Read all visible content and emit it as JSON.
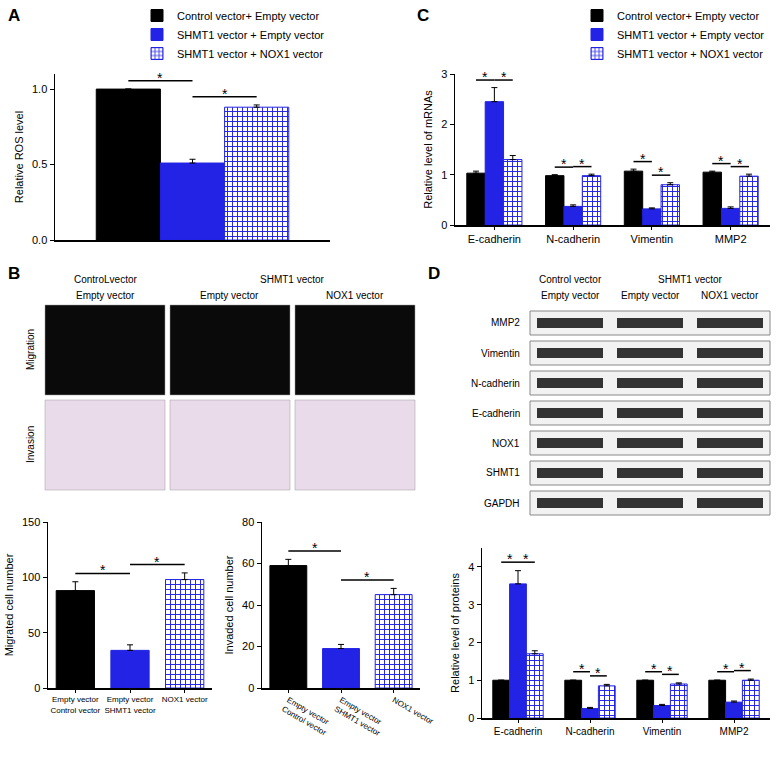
{
  "chart_data": [
    {
      "panel": "A",
      "type": "bar",
      "y_label": "Relative ROS level",
      "ylim": [
        0,
        1.1
      ],
      "yticks": [
        {
          "value": 0,
          "label": "0.0"
        },
        0.5,
        {
          "value": 1,
          "label": "1.0"
        }
      ],
      "grid": false,
      "legend": "top right",
      "tick_labels": "y",
      "series": [
        {
          "name": "Control vector+ Empty vector",
          "color": "#000000",
          "values": [
            1.0
          ],
          "errors": [
            0
          ]
        },
        {
          "name": "SHMT1 vector + Empty vector",
          "color": "#2323e6",
          "values": [
            0.51
          ],
          "errors": [
            0.025
          ]
        },
        {
          "name": "SHMT1 vector + NOX1 vector",
          "color": "#2323e6",
          "marker": "checkered",
          "values": [
            0.88
          ],
          "errors": [
            0.015
          ]
        }
      ],
      "annotations": [
        {
          "text": "*",
          "category": 0,
          "between": [
            0,
            1
          ]
        },
        {
          "text": "*",
          "category": 0,
          "between": [
            1,
            2
          ]
        }
      ]
    },
    {
      "panel": "C",
      "type": "bar",
      "y_label": "Relative level of mRNAs",
      "categories": [
        "E-cadherin",
        "N-cadherin",
        "Vimentin",
        "MMP2"
      ],
      "ylim": [
        0,
        3
      ],
      "yticks": [
        0,
        1,
        2,
        3
      ],
      "grid": false,
      "legend": "top right",
      "series": [
        {
          "name": "Control vector+ Empty vector",
          "color": "#000000",
          "values": [
            1.03,
            0.98,
            1.07,
            1.05
          ],
          "errors": [
            0.04,
            0.02,
            0.04,
            0.02
          ]
        },
        {
          "name": "SHMT1 vector + Empty vector",
          "color": "#2323e6",
          "values": [
            2.45,
            0.37,
            0.32,
            0.33
          ],
          "errors": [
            0.28,
            0.03,
            0.02,
            0.03
          ]
        },
        {
          "name": "SHMT1 vector + NOX1 vector",
          "color": "#2323e6",
          "marker": "checkered",
          "values": [
            1.3,
            0.98,
            0.8,
            0.97
          ],
          "errors": [
            0.08,
            0.03,
            0.04,
            0.04
          ]
        }
      ],
      "annotations": [
        {
          "text": "*",
          "category": 0,
          "between": [
            0,
            1
          ]
        },
        {
          "text": "*",
          "category": 0,
          "between": [
            1,
            2
          ]
        },
        {
          "text": "*",
          "category": 1,
          "between": [
            0,
            1
          ]
        },
        {
          "text": "*",
          "category": 1,
          "between": [
            1,
            2
          ]
        },
        {
          "text": "*",
          "category": 2,
          "between": [
            0,
            1
          ]
        },
        {
          "text": "*",
          "category": 2,
          "between": [
            1,
            2
          ]
        },
        {
          "text": "*",
          "category": 3,
          "between": [
            0,
            1
          ]
        },
        {
          "text": "*",
          "category": 3,
          "between": [
            1,
            2
          ]
        }
      ]
    },
    {
      "type": "bar",
      "y_label": "Migrated cell number",
      "categories": [
        "Empty vector\nControl vector",
        "Empty vector\nSHMT1 vector",
        "NOX1 vector"
      ],
      "ylim": [
        0,
        150
      ],
      "yticks": [
        0,
        50,
        100,
        150
      ],
      "grid": false,
      "series": [
        {
          "color": "#000000",
          "values": [
            88,
            null,
            null
          ],
          "errors": [
            8,
            null,
            null
          ]
        },
        {
          "color": "#2323e6",
          "values": [
            null,
            34,
            null
          ],
          "errors": [
            null,
            5,
            null
          ]
        },
        {
          "color": "#2323e6",
          "marker": "checkered",
          "values": [
            null,
            null,
            98
          ],
          "errors": [
            null,
            null,
            6
          ]
        }
      ],
      "annotations": [
        {
          "text": "*",
          "between": [
            0,
            1
          ]
        },
        {
          "text": "*",
          "between": [
            1,
            2
          ]
        }
      ]
    },
    {
      "type": "bar",
      "y_label": "Invaded cell number",
      "categories": [
        "Empty vector\nControl vector",
        "Empty vector\nSHMT1 vector",
        "NOX1 vector"
      ],
      "ylim": [
        0,
        80
      ],
      "yticks": [
        0,
        20,
        40,
        60,
        80
      ],
      "grid": false,
      "series": [
        {
          "color": "#000000",
          "values": [
            59,
            null,
            null
          ],
          "errors": [
            3,
            null,
            null
          ]
        },
        {
          "color": "#2323e6",
          "values": [
            null,
            19,
            null
          ],
          "errors": [
            null,
            2,
            null
          ]
        },
        {
          "color": "#2323e6",
          "marker": "checkered",
          "values": [
            null,
            null,
            45
          ],
          "errors": [
            null,
            null,
            3
          ]
        }
      ],
      "annotations": [
        {
          "text": "*",
          "between": [
            0,
            1
          ]
        },
        {
          "text": "*",
          "between": [
            1,
            2
          ]
        }
      ]
    },
    {
      "type": "bar",
      "y_label": "Relative level of proteins",
      "categories": [
        "E-cadherin",
        "N-cadherin",
        "Vimentin",
        "MMP2"
      ],
      "ylim": [
        0,
        4.5
      ],
      "yticks": [
        0,
        1,
        2,
        3,
        4
      ],
      "grid": false,
      "series": [
        {
          "color": "#000000",
          "values": [
            1,
            1,
            1,
            1
          ],
          "errors": [
            0,
            0,
            0,
            0
          ]
        },
        {
          "color": "#2323e6",
          "values": [
            3.55,
            0.25,
            0.33,
            0.42
          ],
          "errors": [
            0.35,
            0.03,
            0.03,
            0.03
          ]
        },
        {
          "color": "#2323e6",
          "marker": "checkered",
          "values": [
            1.7,
            0.85,
            0.9,
            1.0
          ],
          "errors": [
            0.08,
            0.04,
            0.03,
            0.03
          ]
        }
      ],
      "annotations": [
        {
          "text": "*",
          "category": 0,
          "between": [
            0,
            1
          ]
        },
        {
          "text": "*",
          "category": 0,
          "between": [
            1,
            2
          ]
        },
        {
          "text": "*",
          "category": 1,
          "between": [
            0,
            1
          ]
        },
        {
          "text": "*",
          "category": 1,
          "between": [
            1,
            2
          ]
        },
        {
          "text": "*",
          "category": 2,
          "between": [
            0,
            1
          ]
        },
        {
          "text": "*",
          "category": 2,
          "between": [
            1,
            2
          ]
        },
        {
          "text": "*",
          "category": 3,
          "between": [
            0,
            1
          ]
        },
        {
          "text": "*",
          "category": 3,
          "between": [
            1,
            2
          ]
        }
      ]
    }
  ],
  "images_panel": {
    "panel": "B",
    "header": [
      {
        "text": "ControLvector",
        "span": 1
      },
      {
        "text": "SHMT1 vector",
        "span": 2
      }
    ],
    "columns": [
      "Empty vector",
      "Empty vector",
      "NOX1 vector"
    ],
    "rows": [
      "Migration",
      "Invasion"
    ]
  },
  "blot": {
    "panel": "D",
    "header": [
      {
        "text": "Control vector",
        "span": 1
      },
      {
        "text": "SHMT1 vector",
        "span": 2
      }
    ],
    "lanes": [
      "Empty vector",
      "Empty vector",
      "NOX1 vector"
    ],
    "rows": [
      "MMP2",
      "Vimentin",
      "N-cadherin",
      "E-cadherin",
      "NOX1",
      "SHMT1",
      "GAPDH"
    ]
  }
}
